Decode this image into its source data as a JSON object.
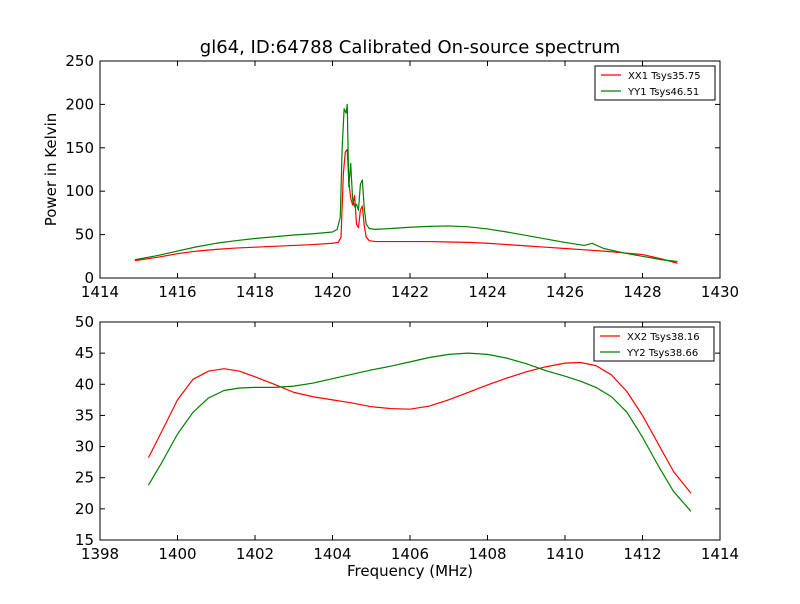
{
  "figure": {
    "title": "gl64, ID:64788 Calibrated On-source spectrum",
    "background": "#ffffff"
  },
  "chart_data": [
    {
      "type": "line",
      "title": "gl64, ID:64788 Calibrated On-source spectrum",
      "xlabel": "",
      "ylabel": "Power in Kelvin",
      "xlim": [
        1414,
        1430
      ],
      "ylim": [
        0,
        250
      ],
      "xticks": [
        1414,
        1416,
        1418,
        1420,
        1422,
        1424,
        1426,
        1428,
        1430
      ],
      "yticks": [
        0,
        50,
        100,
        150,
        200,
        250
      ],
      "grid": false,
      "legend_position": "top-right",
      "series": [
        {
          "name": "XX1 Tsys35.75",
          "color": "#ff0000",
          "x": [
            1414.9,
            1415.5,
            1416.0,
            1416.5,
            1417.0,
            1417.5,
            1418.0,
            1418.5,
            1419.0,
            1419.5,
            1420.0,
            1420.15,
            1420.22,
            1420.28,
            1420.33,
            1420.38,
            1420.42,
            1420.47,
            1420.52,
            1420.57,
            1420.62,
            1420.67,
            1420.72,
            1420.77,
            1420.82,
            1420.87,
            1420.95,
            1421.1,
            1421.5,
            1422.0,
            1422.5,
            1423.0,
            1423.5,
            1424.0,
            1424.5,
            1425.0,
            1425.5,
            1426.0,
            1426.5,
            1427.0,
            1427.5,
            1428.0,
            1428.5,
            1428.9
          ],
          "y": [
            20,
            24,
            28,
            31,
            33,
            34.5,
            35.5,
            36.5,
            37.5,
            38.5,
            40,
            41,
            47,
            120,
            145,
            148,
            112,
            92,
            84,
            95,
            62,
            58,
            78,
            83,
            60,
            47,
            43,
            42,
            42,
            42,
            42,
            41.5,
            41,
            40,
            38.5,
            37,
            35.5,
            34,
            32.5,
            31,
            29,
            27,
            22,
            17
          ]
        },
        {
          "name": "YY1 Tsys46.51",
          "color": "#008000",
          "x": [
            1414.9,
            1415.5,
            1416.0,
            1416.5,
            1417.0,
            1417.5,
            1418.0,
            1418.5,
            1419.0,
            1419.5,
            1420.0,
            1420.12,
            1420.2,
            1420.25,
            1420.3,
            1420.35,
            1420.38,
            1420.42,
            1420.47,
            1420.52,
            1420.57,
            1420.62,
            1420.67,
            1420.72,
            1420.77,
            1420.82,
            1420.87,
            1420.95,
            1421.1,
            1421.5,
            1422.0,
            1422.5,
            1423.0,
            1423.5,
            1424.0,
            1424.5,
            1425.0,
            1425.5,
            1426.0,
            1426.5,
            1426.7,
            1427.0,
            1427.5,
            1428.0,
            1428.5,
            1428.9
          ],
          "y": [
            21,
            26,
            31,
            36,
            40,
            43,
            45.5,
            47.5,
            49.5,
            51,
            53,
            56,
            70,
            150,
            195,
            190,
            200,
            105,
            132,
            90,
            82,
            85,
            78,
            108,
            113,
            80,
            62,
            57,
            56,
            57,
            58.5,
            59.5,
            60,
            59,
            56.5,
            53,
            49,
            45,
            41,
            37.5,
            40,
            34,
            29,
            25,
            21,
            19
          ]
        }
      ]
    },
    {
      "type": "line",
      "title": "",
      "xlabel": "Frequency (MHz)",
      "ylabel": "",
      "xlim": [
        1398,
        1414
      ],
      "ylim": [
        15,
        50
      ],
      "xticks": [
        1398,
        1400,
        1402,
        1404,
        1406,
        1408,
        1410,
        1412,
        1414
      ],
      "yticks": [
        15,
        20,
        25,
        30,
        35,
        40,
        45,
        50
      ],
      "grid": false,
      "legend_position": "top-right",
      "series": [
        {
          "name": "XX2 Tsys38.16",
          "color": "#ff0000",
          "x": [
            1399.25,
            1399.6,
            1400.0,
            1400.4,
            1400.8,
            1401.2,
            1401.6,
            1402.0,
            1402.5,
            1403.0,
            1403.5,
            1404.0,
            1404.5,
            1405.0,
            1405.5,
            1406.0,
            1406.5,
            1407.0,
            1407.5,
            1408.0,
            1408.5,
            1409.0,
            1409.5,
            1410.0,
            1410.4,
            1410.8,
            1411.2,
            1411.6,
            1412.0,
            1412.4,
            1412.8,
            1413.25
          ],
          "y": [
            28.2,
            32.5,
            37.5,
            40.8,
            42.1,
            42.5,
            42.1,
            41.2,
            40.0,
            38.7,
            38.0,
            37.5,
            37.0,
            36.4,
            36.1,
            36.0,
            36.5,
            37.5,
            38.7,
            39.9,
            41.0,
            42.0,
            42.8,
            43.4,
            43.5,
            43.0,
            41.5,
            38.8,
            35.0,
            30.5,
            26.0,
            22.5
          ]
        },
        {
          "name": "YY2 Tsys38.66",
          "color": "#008000",
          "x": [
            1399.25,
            1399.6,
            1400.0,
            1400.4,
            1400.8,
            1401.2,
            1401.6,
            1402.0,
            1402.5,
            1403.0,
            1403.5,
            1404.0,
            1404.5,
            1405.0,
            1405.5,
            1406.0,
            1406.5,
            1407.0,
            1407.5,
            1408.0,
            1408.5,
            1409.0,
            1409.5,
            1410.0,
            1410.4,
            1410.8,
            1411.2,
            1411.6,
            1412.0,
            1412.4,
            1412.8,
            1413.25
          ],
          "y": [
            23.8,
            27.5,
            32.0,
            35.5,
            37.8,
            39.0,
            39.4,
            39.5,
            39.5,
            39.7,
            40.2,
            40.9,
            41.6,
            42.3,
            42.9,
            43.6,
            44.3,
            44.8,
            45.0,
            44.8,
            44.2,
            43.3,
            42.2,
            41.3,
            40.5,
            39.5,
            38.0,
            35.5,
            31.5,
            27.0,
            22.8,
            19.6
          ]
        }
      ]
    }
  ]
}
